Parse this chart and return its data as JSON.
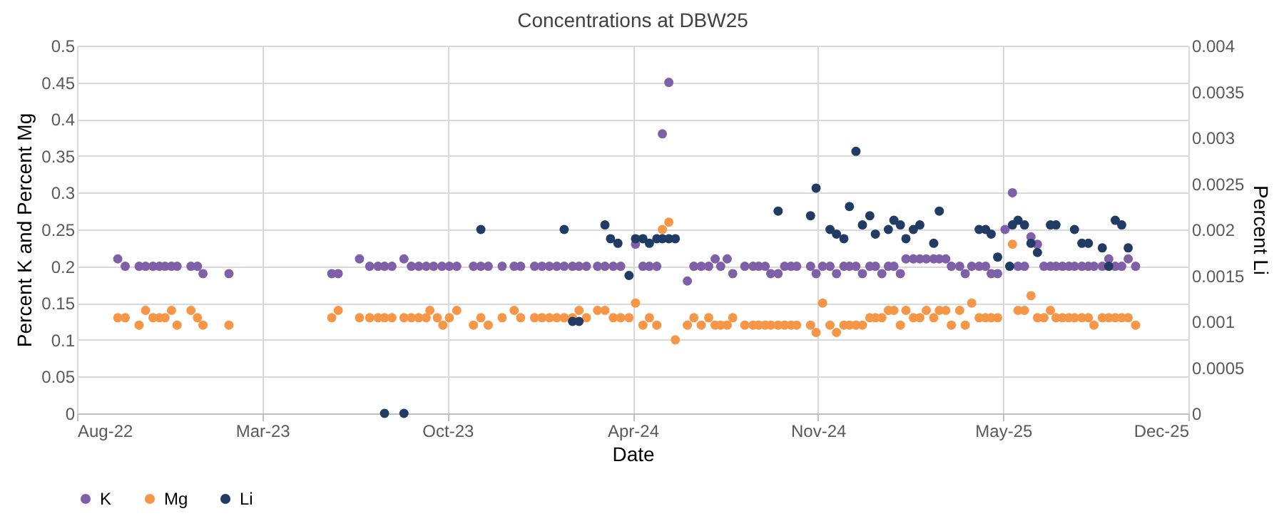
{
  "chart_data": {
    "type": "scatter",
    "title": "Concentrations at DBW25",
    "xlabel": "Date",
    "ylabel": "Percent K and Percent Mg",
    "y2label": "Percent Li",
    "xlim": [
      "2022-08-30",
      "2025-12-12"
    ],
    "xticks": [
      {
        "value": "2022-08-30",
        "label": "Aug-22"
      },
      {
        "value": "2023-03-18",
        "label": "Mar-23"
      },
      {
        "value": "2023-10-04",
        "label": "Oct-23"
      },
      {
        "value": "2024-04-21",
        "label": "Apr-24"
      },
      {
        "value": "2024-11-07",
        "label": "Nov-24"
      },
      {
        "value": "2025-05-26",
        "label": "May-25"
      },
      {
        "value": "2025-12-12",
        "label": "Dec-25"
      }
    ],
    "ylim": [
      0,
      0.5
    ],
    "yticks": [
      0,
      0.05,
      0.1,
      0.15,
      0.2,
      0.25,
      0.3,
      0.35,
      0.4,
      0.45,
      0.5
    ],
    "y2lim": [
      0,
      0.004
    ],
    "y2ticks": [
      0,
      0.0005,
      0.001,
      0.0015,
      0.002,
      0.0025,
      0.003,
      0.0035,
      0.004
    ],
    "grid": true,
    "legend": "bottom",
    "marker": "circle",
    "series": [
      {
        "name": "K",
        "color": "#7f5fa8",
        "x": [
          "2022-10-13",
          "2022-10-21",
          "2022-11-05",
          "2022-11-12",
          "2022-11-20",
          "2022-11-27",
          "2022-12-03",
          "2022-12-10",
          "2022-12-16",
          "2022-12-31",
          "2023-01-07",
          "2023-01-13",
          "2023-02-10",
          "2023-06-01",
          "2023-06-08",
          "2023-07-01",
          "2023-07-12",
          "2023-07-21",
          "2023-07-28",
          "2023-08-05",
          "2023-08-18",
          "2023-08-26",
          "2023-09-03",
          "2023-09-11",
          "2023-09-19",
          "2023-09-28",
          "2023-10-06",
          "2023-10-14",
          "2023-11-01",
          "2023-11-09",
          "2023-11-17",
          "2023-12-02",
          "2023-12-15",
          "2023-12-22",
          "2024-01-06",
          "2024-01-14",
          "2024-01-22",
          "2024-01-30",
          "2024-02-07",
          "2024-02-16",
          "2024-02-23",
          "2024-03-02",
          "2024-03-14",
          "2024-03-22",
          "2024-03-31",
          "2024-04-08",
          "2024-04-24",
          "2024-05-02",
          "2024-05-09",
          "2024-05-17",
          "2024-05-23",
          "2024-05-30",
          "2024-06-19",
          "2024-06-26",
          "2024-07-04",
          "2024-07-12",
          "2024-07-19",
          "2024-07-25",
          "2024-08-01",
          "2024-08-07",
          "2024-08-20",
          "2024-08-29",
          "2024-09-04",
          "2024-09-11",
          "2024-09-17",
          "2024-09-25",
          "2024-10-02",
          "2024-10-09",
          "2024-10-15",
          "2024-10-30",
          "2024-11-05",
          "2024-11-12",
          "2024-11-20",
          "2024-11-27",
          "2024-12-05",
          "2024-12-11",
          "2024-12-18",
          "2024-12-25",
          "2025-01-02",
          "2025-01-08",
          "2025-01-15",
          "2025-01-22",
          "2025-01-28",
          "2025-02-04",
          "2025-02-10",
          "2025-02-18",
          "2025-02-25",
          "2025-03-04",
          "2025-03-12",
          "2025-03-18",
          "2025-03-25",
          "2025-03-31",
          "2025-04-09",
          "2025-04-15",
          "2025-04-22",
          "2025-04-30",
          "2025-05-07",
          "2025-05-13",
          "2025-05-20",
          "2025-05-28",
          "2025-06-05",
          "2025-06-11",
          "2025-06-18",
          "2025-06-25",
          "2025-07-02",
          "2025-07-09",
          "2025-07-16",
          "2025-07-22",
          "2025-07-29",
          "2025-08-05",
          "2025-08-11",
          "2025-08-19",
          "2025-08-26",
          "2025-09-01",
          "2025-09-10",
          "2025-09-17",
          "2025-09-24",
          "2025-10-01",
          "2025-10-08",
          "2025-10-16"
        ],
        "values": [
          0.21,
          0.2,
          0.2,
          0.2,
          0.2,
          0.2,
          0.2,
          0.2,
          0.2,
          0.2,
          0.2,
          0.19,
          0.19,
          0.19,
          0.19,
          0.21,
          0.2,
          0.2,
          0.2,
          0.2,
          0.21,
          0.2,
          0.2,
          0.2,
          0.2,
          0.2,
          0.2,
          0.2,
          0.2,
          0.2,
          0.2,
          0.2,
          0.2,
          0.2,
          0.2,
          0.2,
          0.2,
          0.2,
          0.2,
          0.2,
          0.2,
          0.2,
          0.2,
          0.2,
          0.2,
          0.2,
          0.23,
          0.2,
          0.2,
          0.2,
          0.38,
          0.45,
          0.18,
          0.2,
          0.2,
          0.2,
          0.21,
          0.2,
          0.21,
          0.19,
          0.2,
          0.2,
          0.2,
          0.2,
          0.19,
          0.19,
          0.2,
          0.2,
          0.2,
          0.2,
          0.19,
          0.2,
          0.2,
          0.19,
          0.2,
          0.2,
          0.2,
          0.19,
          0.2,
          0.2,
          0.19,
          0.2,
          0.2,
          0.19,
          0.21,
          0.21,
          0.21,
          0.21,
          0.21,
          0.21,
          0.21,
          0.2,
          0.2,
          0.19,
          0.2,
          0.2,
          0.2,
          0.19,
          0.19,
          0.25,
          0.3,
          0.2,
          0.2,
          0.24,
          0.23,
          0.2,
          0.2,
          0.2,
          0.2,
          0.2,
          0.2,
          0.2,
          0.2,
          0.2,
          0.2,
          0.21,
          0.2,
          0.2,
          0.21,
          0.2
        ]
      },
      {
        "name": "Mg",
        "color": "#f79646",
        "x": [
          "2022-10-13",
          "2022-10-21",
          "2022-11-05",
          "2022-11-12",
          "2022-11-20",
          "2022-11-27",
          "2022-12-03",
          "2022-12-10",
          "2022-12-16",
          "2022-12-31",
          "2023-01-07",
          "2023-01-13",
          "2023-02-10",
          "2023-06-01",
          "2023-06-08",
          "2023-07-01",
          "2023-07-12",
          "2023-07-21",
          "2023-07-28",
          "2023-08-05",
          "2023-08-18",
          "2023-08-26",
          "2023-09-03",
          "2023-09-11",
          "2023-09-15",
          "2023-09-23",
          "2023-09-29",
          "2023-10-06",
          "2023-10-14",
          "2023-11-01",
          "2023-11-09",
          "2023-11-17",
          "2023-12-02",
          "2023-12-15",
          "2023-12-22",
          "2024-01-06",
          "2024-01-14",
          "2024-01-22",
          "2024-01-30",
          "2024-02-07",
          "2024-02-16",
          "2024-02-23",
          "2024-03-02",
          "2024-03-14",
          "2024-03-22",
          "2024-03-31",
          "2024-04-08",
          "2024-04-17",
          "2024-04-24",
          "2024-05-02",
          "2024-05-09",
          "2024-05-17",
          "2024-05-23",
          "2024-05-30",
          "2024-06-06",
          "2024-06-19",
          "2024-06-26",
          "2024-07-04",
          "2024-07-12",
          "2024-07-19",
          "2024-07-25",
          "2024-08-01",
          "2024-08-07",
          "2024-08-20",
          "2024-08-29",
          "2024-09-04",
          "2024-09-11",
          "2024-09-17",
          "2024-09-25",
          "2024-10-02",
          "2024-10-09",
          "2024-10-15",
          "2024-10-30",
          "2024-11-05",
          "2024-11-12",
          "2024-11-20",
          "2024-11-27",
          "2024-12-05",
          "2024-12-11",
          "2024-12-18",
          "2024-12-25",
          "2025-01-02",
          "2025-01-08",
          "2025-01-15",
          "2025-01-22",
          "2025-01-28",
          "2025-02-04",
          "2025-02-10",
          "2025-02-18",
          "2025-02-25",
          "2025-03-04",
          "2025-03-12",
          "2025-03-18",
          "2025-03-25",
          "2025-03-31",
          "2025-04-09",
          "2025-04-15",
          "2025-04-22",
          "2025-04-30",
          "2025-05-07",
          "2025-05-13",
          "2025-05-20",
          "2025-06-05",
          "2025-06-11",
          "2025-06-18",
          "2025-06-25",
          "2025-07-02",
          "2025-07-09",
          "2025-07-16",
          "2025-07-22",
          "2025-07-29",
          "2025-08-05",
          "2025-08-11",
          "2025-08-19",
          "2025-08-26",
          "2025-09-01",
          "2025-09-10",
          "2025-09-17",
          "2025-09-24",
          "2025-10-01",
          "2025-10-08",
          "2025-10-16"
        ],
        "values": [
          0.13,
          0.13,
          0.12,
          0.14,
          0.13,
          0.13,
          0.13,
          0.14,
          0.12,
          0.14,
          0.13,
          0.12,
          0.12,
          0.13,
          0.14,
          0.13,
          0.13,
          0.13,
          0.13,
          0.13,
          0.13,
          0.13,
          0.13,
          0.13,
          0.14,
          0.13,
          0.12,
          0.13,
          0.14,
          0.12,
          0.13,
          0.12,
          0.13,
          0.14,
          0.13,
          0.13,
          0.13,
          0.13,
          0.13,
          0.13,
          0.13,
          0.14,
          0.13,
          0.14,
          0.14,
          0.13,
          0.13,
          0.13,
          0.15,
          0.12,
          0.13,
          0.12,
          0.25,
          0.26,
          0.1,
          0.12,
          0.13,
          0.12,
          0.13,
          0.12,
          0.12,
          0.12,
          0.13,
          0.12,
          0.12,
          0.12,
          0.12,
          0.12,
          0.12,
          0.12,
          0.12,
          0.12,
          0.12,
          0.11,
          0.15,
          0.12,
          0.11,
          0.12,
          0.12,
          0.12,
          0.12,
          0.13,
          0.13,
          0.13,
          0.14,
          0.14,
          0.12,
          0.14,
          0.13,
          0.13,
          0.14,
          0.13,
          0.14,
          0.14,
          0.12,
          0.14,
          0.12,
          0.15,
          0.13,
          0.13,
          0.13,
          0.13,
          0.23,
          0.14,
          0.14,
          0.16,
          0.13,
          0.13,
          0.14,
          0.13,
          0.13,
          0.13,
          0.13,
          0.13,
          0.13,
          0.12,
          0.13,
          0.13,
          0.13,
          0.13,
          0.13,
          0.12
        ]
      },
      {
        "name": "Li",
        "color": "#203c64",
        "axis": "y2",
        "x": [
          "2023-07-28",
          "2023-08-18",
          "2023-11-09",
          "2024-02-07",
          "2024-02-16",
          "2024-02-23",
          "2024-03-22",
          "2024-03-28",
          "2024-04-05",
          "2024-04-17",
          "2024-04-24",
          "2024-05-02",
          "2024-05-09",
          "2024-05-17",
          "2024-05-23",
          "2024-05-30",
          "2024-06-06",
          "2024-09-25",
          "2024-10-30",
          "2024-11-05",
          "2024-11-20",
          "2024-11-27",
          "2024-12-05",
          "2024-12-11",
          "2024-12-18",
          "2024-12-25",
          "2025-01-02",
          "2025-01-08",
          "2025-01-22",
          "2025-01-28",
          "2025-02-04",
          "2025-02-10",
          "2025-02-18",
          "2025-02-25",
          "2025-03-12",
          "2025-03-18",
          "2025-04-30",
          "2025-05-07",
          "2025-05-13",
          "2025-05-20",
          "2025-06-02",
          "2025-06-05",
          "2025-06-11",
          "2025-06-18",
          "2025-06-25",
          "2025-07-02",
          "2025-07-16",
          "2025-07-22",
          "2025-08-11",
          "2025-08-19",
          "2025-08-26",
          "2025-09-10",
          "2025-09-17",
          "2025-09-24",
          "2025-10-01",
          "2025-10-08"
        ],
        "values": [
          0,
          0,
          0.002,
          0.002,
          0.001,
          0.001,
          0.00205,
          0.0019,
          0.00185,
          0.0015,
          0.0019,
          0.0019,
          0.00185,
          0.0019,
          0.0019,
          0.0019,
          0.0019,
          0.0022,
          0.00215,
          0.00245,
          0.002,
          0.00195,
          0.0019,
          0.00225,
          0.00285,
          0.00205,
          0.00215,
          0.00195,
          0.002,
          0.0021,
          0.00205,
          0.0019,
          0.002,
          0.00205,
          0.00185,
          0.0022,
          0.002,
          0.002,
          0.00195,
          0.0017,
          0.0016,
          0.00205,
          0.0021,
          0.00205,
          0.00185,
          0.00175,
          0.00205,
          0.00205,
          0.002,
          0.00185,
          0.00185,
          0.0018,
          0.0016,
          0.0021,
          0.00205,
          0.0018
        ]
      }
    ]
  }
}
